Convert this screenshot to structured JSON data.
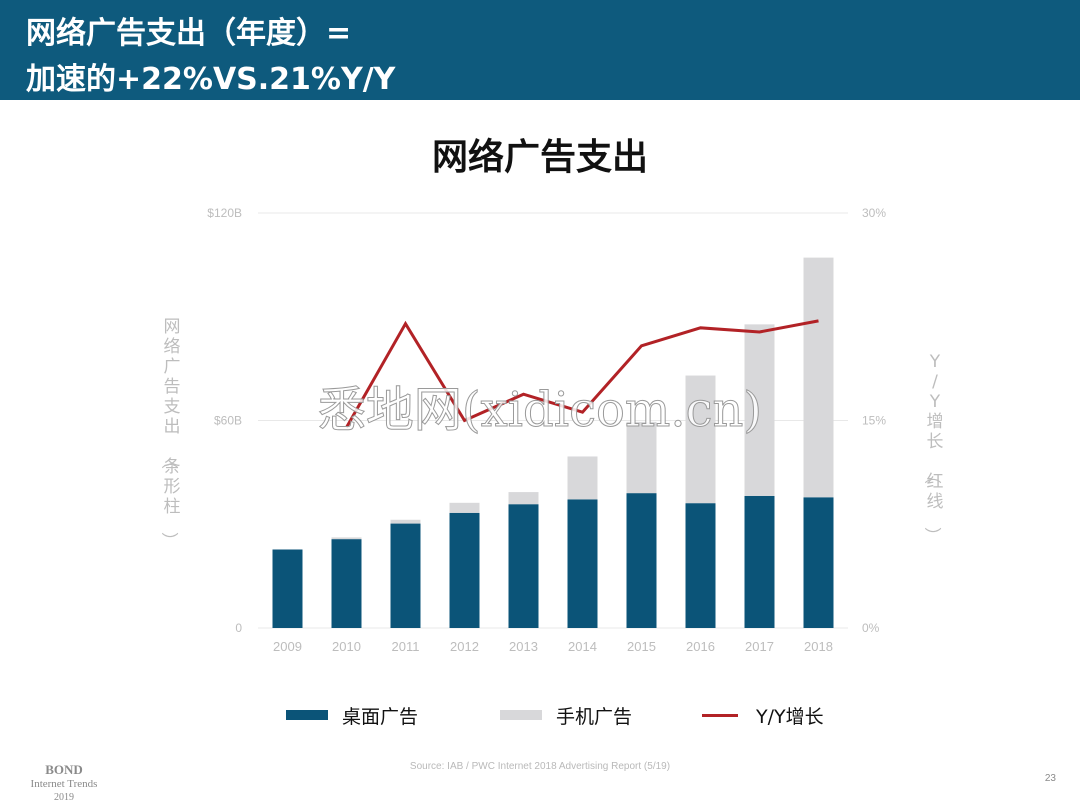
{
  "header": {
    "line1": "网络广告支出（年度）=",
    "line2": "加速的+22%VS.21%Y/Y"
  },
  "colors": {
    "header_bg": "#0e5a7d",
    "desktop": "#0b5478",
    "mobile": "#d8d8da",
    "growth_line": "#b22226",
    "grid": "#e8e8e8",
    "axis_text": "#bdbdbd"
  },
  "chart_data": {
    "type": "bar",
    "stacked": true,
    "title": "网络广告支出",
    "categories": [
      "2009",
      "2010",
      "2011",
      "2012",
      "2013",
      "2014",
      "2015",
      "2016",
      "2017",
      "2018"
    ],
    "series": [
      {
        "name": "桌面广告",
        "kind": "bar",
        "axis": "left",
        "values": [
          22.7,
          25.7,
          30.2,
          33.3,
          35.8,
          37.2,
          39.0,
          36.1,
          38.2,
          37.8
        ]
      },
      {
        "name": "手机广告",
        "kind": "bar",
        "axis": "left",
        "values": [
          0,
          0.5,
          1.1,
          2.9,
          3.5,
          12.4,
          20.6,
          36.9,
          49.6,
          69.3
        ]
      },
      {
        "name": "Y/Y增长",
        "kind": "line",
        "axis": "right",
        "values": [
          null,
          14.5,
          22.0,
          15.0,
          16.9,
          15.6,
          20.4,
          21.7,
          21.4,
          22.2
        ]
      }
    ],
    "y_left": {
      "label": "网络广告支出（条形柱）",
      "ticks": [
        "$120B",
        "$60B",
        "0"
      ],
      "range": [
        0,
        120
      ]
    },
    "y_right": {
      "label": "Y/Y增长（红线）",
      "ticks": [
        "30%",
        "15%",
        "0%"
      ],
      "range": [
        0,
        30
      ]
    },
    "grid": true,
    "legend": "bottom"
  },
  "source": "Source: IAB / PWC Internet 2018 Advertising Report (5/19)",
  "footer": {
    "brand": "BOND",
    "subtitle": "Internet Trends",
    "year": "2019",
    "page": "23"
  },
  "watermark": "悉地网(xidicom.cn)"
}
